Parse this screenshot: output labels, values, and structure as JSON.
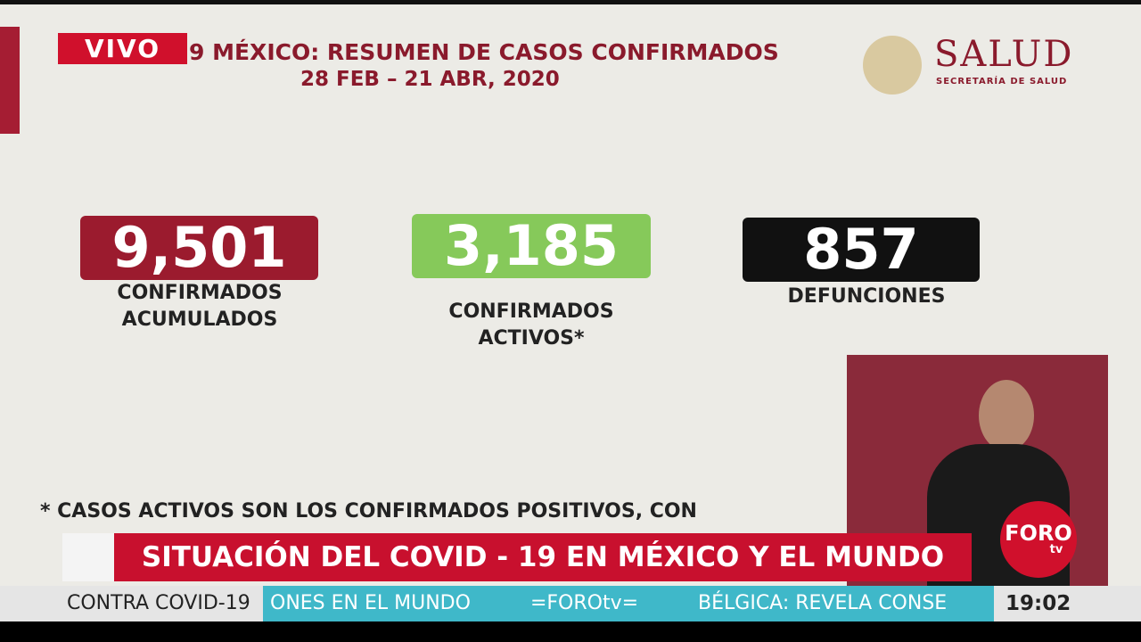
{
  "live_badge": "VIVO",
  "header": {
    "title": "9 MÉXICO: RESUMEN DE CASOS CONFIRMADOS",
    "subtitle": "28 FEB – 21 ABR, 2020"
  },
  "logo": {
    "name": "SALUD",
    "subtitle": "SECRETARÍA DE SALUD"
  },
  "stats": [
    {
      "value": "9,501",
      "label": [
        "CONFIRMADOS",
        "ACUMULADOS"
      ]
    },
    {
      "value": "3,185",
      "label": [
        "CONFIRMADOS",
        "ACTIVOS*"
      ]
    },
    {
      "value": "857",
      "label": [
        "DEFUNCIONES"
      ]
    }
  ],
  "footnote": "* CASOS ACTIVOS SON LOS CONFIRMADOS POSITIVOS, CON",
  "banner": "SITUACIÓN DEL COVID - 19 EN MÉXICO Y EL MUNDO",
  "brand": {
    "name": "FORO",
    "suffix": "tv"
  },
  "ticker": {
    "section": "CONTRA COVID-19",
    "items": [
      "ONES EN EL MUNDO",
      "=FOROtv=",
      "BÉLGICA: REVELA CONSE"
    ],
    "time": "19:02"
  }
}
